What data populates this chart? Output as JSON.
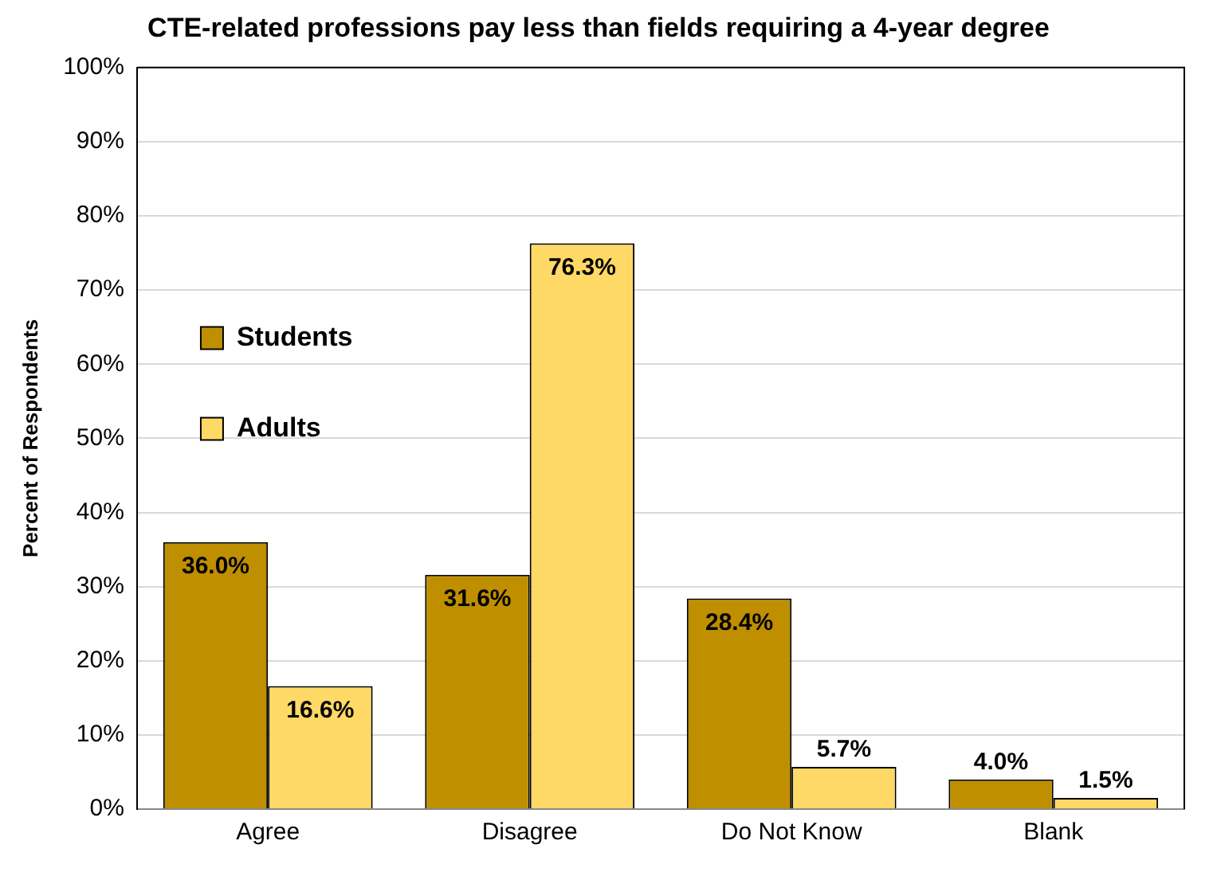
{
  "chart_data": {
    "type": "bar",
    "title": "CTE-related professions pay less than fields requiring a 4-year degree",
    "ylabel": "Percent of Respondents",
    "categories": [
      "Agree",
      "Disagree",
      "Do Not Know",
      "Blank"
    ],
    "series": [
      {
        "name": "Students",
        "color": "#bf8f00",
        "values": [
          36.0,
          31.6,
          28.4,
          4.0
        ],
        "value_labels": [
          "36.0%",
          "31.6%",
          "28.4%",
          "4.0%"
        ]
      },
      {
        "name": "Adults",
        "color": "#ffd966",
        "values": [
          16.6,
          76.3,
          5.7,
          1.5
        ],
        "value_labels": [
          "16.6%",
          "76.3%",
          "5.7%",
          "1.5%"
        ]
      }
    ],
    "ylim": [
      0,
      100
    ],
    "yticks": [
      {
        "value": 0,
        "label": "0%"
      },
      {
        "value": 10,
        "label": "10%"
      },
      {
        "value": 20,
        "label": "20%"
      },
      {
        "value": 30,
        "label": "30%"
      },
      {
        "value": 40,
        "label": "40%"
      },
      {
        "value": 50,
        "label": "50%"
      },
      {
        "value": 60,
        "label": "60%"
      },
      {
        "value": 70,
        "label": "70%"
      },
      {
        "value": 80,
        "label": "80%"
      },
      {
        "value": 90,
        "label": "90%"
      },
      {
        "value": 100,
        "label": "100%"
      }
    ],
    "grid": "y",
    "legend": "top"
  }
}
